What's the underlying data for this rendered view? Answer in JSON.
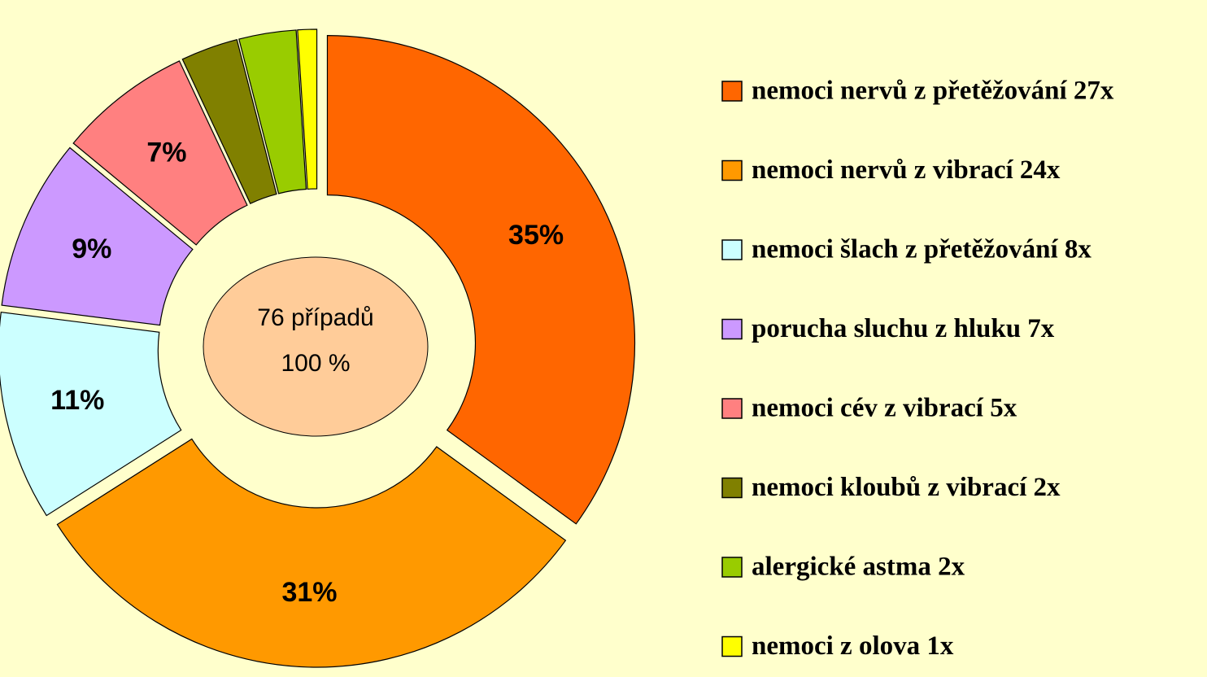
{
  "chart_data": {
    "type": "pie",
    "categories": [
      "nemoci nervů z přetěžování 27x",
      "nemoci nervů z vibrací 24x",
      "nemoci šlach z přetěžování 8x",
      "porucha sluchu z hluku 7x",
      "nemoci cév z vibrací 5x",
      "nemoci kloubů z vibrací 2x",
      "alergické astma 2x",
      "nemoci z olova 1x"
    ],
    "values": [
      35,
      31,
      11,
      9,
      7,
      3,
      3,
      1
    ],
    "value_labels": [
      "35%",
      "31%",
      "11%",
      "9%",
      "7%",
      null,
      null,
      null
    ],
    "colors": [
      "#ff6600",
      "#ff9900",
      "#ccffff",
      "#cc99ff",
      "#ff8080",
      "#808000",
      "#99cc00",
      "#ffff00"
    ],
    "center_label": [
      "76 případů",
      "100 %"
    ],
    "legend": "right"
  }
}
